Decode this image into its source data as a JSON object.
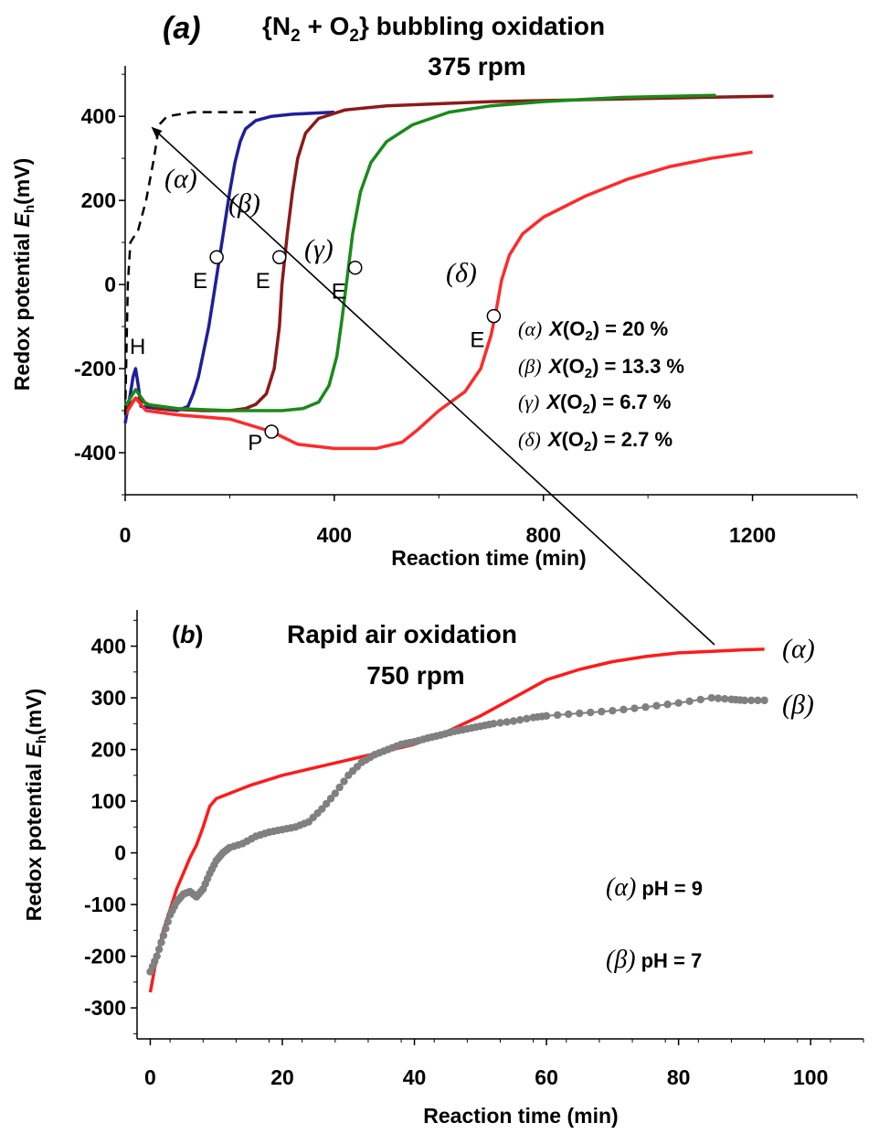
{
  "chart_data": [
    {
      "panel": "(a)",
      "type": "line",
      "title": "{N2 + O2} bubbling oxidation",
      "subtitle": "375 rpm",
      "xlabel": "Reaction time (min)",
      "ylabel": "Redox potential Eh(mV)",
      "xlim": [
        0,
        1400
      ],
      "ylim": [
        -500,
        520
      ],
      "xticks": [
        "0",
        "400",
        "800",
        "1200"
      ],
      "yticks": [
        "-400",
        "-200",
        "0",
        "200",
        "400"
      ],
      "xtick_values": [
        0,
        400,
        800,
        1200
      ],
      "ytick_values": [
        -400,
        -200,
        0,
        200,
        400
      ],
      "series": [
        {
          "name": "(α) X(O2) = 20 %",
          "color": "#1f1f9a",
          "points": [
            [
              0,
              -330
            ],
            [
              10,
              -260
            ],
            [
              15,
              -220
            ],
            [
              20,
              -200
            ],
            [
              25,
              -240
            ],
            [
              30,
              -290
            ],
            [
              60,
              -295
            ],
            [
              100,
              -300
            ],
            [
              120,
              -290
            ],
            [
              130,
              -260
            ],
            [
              140,
              -220
            ],
            [
              150,
              -160
            ],
            [
              160,
              -100
            ],
            [
              170,
              -20
            ],
            [
              180,
              60
            ],
            [
              190,
              140
            ],
            [
              200,
              220
            ],
            [
              210,
              290
            ],
            [
              220,
              340
            ],
            [
              230,
              370
            ],
            [
              250,
              390
            ],
            [
              280,
              400
            ],
            [
              320,
              405
            ],
            [
              400,
              410
            ]
          ]
        },
        {
          "name": "(β) X(O2) = 13.3 %",
          "color": "#8b1a1a",
          "points": [
            [
              0,
              -300
            ],
            [
              20,
              -270
            ],
            [
              60,
              -295
            ],
            [
              150,
              -300
            ],
            [
              200,
              -300
            ],
            [
              230,
              -295
            ],
            [
              250,
              -285
            ],
            [
              270,
              -260
            ],
            [
              285,
              -200
            ],
            [
              295,
              -100
            ],
            [
              300,
              0
            ],
            [
              310,
              120
            ],
            [
              320,
              220
            ],
            [
              330,
              300
            ],
            [
              345,
              360
            ],
            [
              370,
              395
            ],
            [
              420,
              415
            ],
            [
              500,
              425
            ],
            [
              700,
              435
            ],
            [
              900,
              440
            ],
            [
              1100,
              445
            ],
            [
              1240,
              448
            ]
          ]
        },
        {
          "name": "(γ) X(O2) = 6.7 %",
          "color": "#1a8a1a",
          "points": [
            [
              0,
              -290
            ],
            [
              20,
              -250
            ],
            [
              40,
              -285
            ],
            [
              100,
              -295
            ],
            [
              200,
              -300
            ],
            [
              300,
              -300
            ],
            [
              340,
              -295
            ],
            [
              370,
              -280
            ],
            [
              390,
              -240
            ],
            [
              405,
              -170
            ],
            [
              415,
              -80
            ],
            [
              425,
              20
            ],
            [
              435,
              120
            ],
            [
              450,
              220
            ],
            [
              470,
              290
            ],
            [
              500,
              340
            ],
            [
              550,
              380
            ],
            [
              620,
              410
            ],
            [
              700,
              425
            ],
            [
              800,
              435
            ],
            [
              950,
              445
            ],
            [
              1130,
              450
            ]
          ]
        },
        {
          "name": "(δ) X(O2) = 2.7 %",
          "color": "#ff2a2a",
          "points": [
            [
              0,
              -310
            ],
            [
              20,
              -270
            ],
            [
              40,
              -300
            ],
            [
              100,
              -310
            ],
            [
              200,
              -320
            ],
            [
              280,
              -350
            ],
            [
              330,
              -380
            ],
            [
              400,
              -390
            ],
            [
              480,
              -390
            ],
            [
              530,
              -375
            ],
            [
              560,
              -345
            ],
            [
              600,
              -300
            ],
            [
              650,
              -255
            ],
            [
              680,
              -200
            ],
            [
              700,
              -120
            ],
            [
              710,
              -60
            ],
            [
              720,
              10
            ],
            [
              735,
              70
            ],
            [
              760,
              120
            ],
            [
              800,
              160
            ],
            [
              880,
              210
            ],
            [
              960,
              250
            ],
            [
              1040,
              280
            ],
            [
              1120,
              300
            ],
            [
              1200,
              315
            ]
          ]
        },
        {
          "name": "dashed",
          "color": "#000000",
          "dashed": true,
          "points": [
            [
              0,
              -310
            ],
            [
              5,
              0
            ],
            [
              10,
              100
            ],
            [
              25,
              130
            ],
            [
              40,
              200
            ],
            [
              55,
              300
            ],
            [
              65,
              380
            ],
            [
              80,
              400
            ],
            [
              130,
              410
            ],
            [
              250,
              410
            ]
          ]
        }
      ],
      "markers": [
        {
          "label": "E",
          "x": 175,
          "y": 65
        },
        {
          "label": "E",
          "x": 295,
          "y": 65
        },
        {
          "label": "E",
          "x": 440,
          "y": 40
        },
        {
          "label": "E",
          "x": 705,
          "y": -75
        },
        {
          "label": "P",
          "x": 280,
          "y": -350
        }
      ],
      "curve_labels": [
        "(α)",
        "(β)",
        "(γ)",
        "(δ)"
      ],
      "annotation_H": "H",
      "legend": [
        {
          "greek": "(α)",
          "text": "X(O2) = 20 %"
        },
        {
          "greek": "(β)",
          "text": "X(O2) = 13.3 %"
        },
        {
          "greek": "(γ)",
          "text": "X(O2) = 6.7 %"
        },
        {
          "greek": "(δ)",
          "text": "X(O2) = 2.7 %"
        }
      ]
    },
    {
      "panel": "(b)",
      "type": "line",
      "title": "Rapid air oxidation",
      "subtitle": "750 rpm",
      "xlabel": "Reaction time (min)",
      "ylabel": "Redox potential Eh(mV)",
      "xlim": [
        -2,
        108
      ],
      "ylim": [
        -360,
        470
      ],
      "xticks": [
        "0",
        "20",
        "40",
        "60",
        "80",
        "100"
      ],
      "yticks": [
        "-300",
        "-200",
        "-100",
        "0",
        "100",
        "200",
        "300",
        "400"
      ],
      "xtick_values": [
        0,
        20,
        40,
        60,
        80,
        100
      ],
      "ytick_values": [
        -300,
        -200,
        -100,
        0,
        100,
        200,
        300,
        400
      ],
      "series": [
        {
          "name": "(α) pH = 9",
          "color": "#ff1a1a",
          "points": [
            [
              0,
              -270
            ],
            [
              1,
              -200
            ],
            [
              2,
              -150
            ],
            [
              3,
              -110
            ],
            [
              4,
              -70
            ],
            [
              5,
              -40
            ],
            [
              6,
              -10
            ],
            [
              7,
              15
            ],
            [
              8,
              50
            ],
            [
              9,
              90
            ],
            [
              10,
              105
            ],
            [
              12,
              115
            ],
            [
              15,
              130
            ],
            [
              20,
              150
            ],
            [
              25,
              165
            ],
            [
              30,
              180
            ],
            [
              35,
              195
            ],
            [
              40,
              210
            ],
            [
              45,
              235
            ],
            [
              50,
              265
            ],
            [
              55,
              300
            ],
            [
              60,
              335
            ],
            [
              65,
              355
            ],
            [
              70,
              370
            ],
            [
              75,
              380
            ],
            [
              80,
              387
            ],
            [
              85,
              390
            ],
            [
              90,
              393
            ],
            [
              93,
              394
            ]
          ]
        },
        {
          "name": "(β) pH = 7",
          "color": "#808080",
          "dotted": true,
          "points": [
            [
              0,
              -230
            ],
            [
              1,
              -200
            ],
            [
              2,
              -160
            ],
            [
              3,
              -120
            ],
            [
              4,
              -95
            ],
            [
              5,
              -80
            ],
            [
              6,
              -75
            ],
            [
              7,
              -85
            ],
            [
              8,
              -70
            ],
            [
              9,
              -40
            ],
            [
              10,
              -15
            ],
            [
              11,
              0
            ],
            [
              12,
              10
            ],
            [
              14,
              18
            ],
            [
              16,
              32
            ],
            [
              18,
              40
            ],
            [
              20,
              45
            ],
            [
              22,
              50
            ],
            [
              24,
              60
            ],
            [
              26,
              85
            ],
            [
              28,
              115
            ],
            [
              30,
              150
            ],
            [
              32,
              175
            ],
            [
              34,
              190
            ],
            [
              36,
              200
            ],
            [
              38,
              210
            ],
            [
              40,
              215
            ],
            [
              42,
              222
            ],
            [
              44,
              228
            ],
            [
              46,
              235
            ],
            [
              48,
              240
            ],
            [
              50,
              245
            ],
            [
              52,
              250
            ],
            [
              55,
              255
            ],
            [
              58,
              262
            ],
            [
              60,
              265
            ],
            [
              65,
              270
            ],
            [
              70,
              275
            ],
            [
              75,
              282
            ],
            [
              80,
              290
            ],
            [
              85,
              300
            ],
            [
              88,
              297
            ],
            [
              90,
              295
            ],
            [
              93,
              295
            ]
          ]
        }
      ],
      "series_end_labels": [
        "(α)",
        "(β)"
      ],
      "legend": [
        {
          "greek": "(α)",
          "text": "pH = 9"
        },
        {
          "greek": "(β)",
          "text": "pH = 7"
        }
      ]
    }
  ],
  "arrow_color": "#000000"
}
